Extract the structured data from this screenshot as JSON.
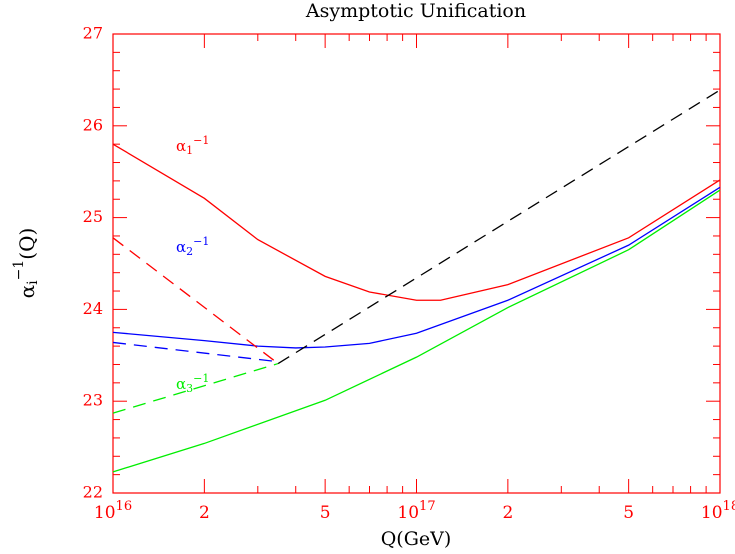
{
  "chart_data": {
    "type": "line",
    "title": "Asymptotic Unification",
    "xlabel": "Q(GeV)",
    "ylabel": {
      "base": "α",
      "sub": "i",
      "sup": "−1",
      "rest": "(Q)"
    },
    "xscale": "log",
    "xlim": [
      1e+16,
      1e+18
    ],
    "ylim": [
      22,
      27
    ],
    "xticks": [
      {
        "value": 1e+16,
        "label": "10",
        "sup": "16"
      },
      {
        "value": 2e+16,
        "label": "2"
      },
      {
        "value": 5e+16,
        "label": "5"
      },
      {
        "value": 1e+17,
        "label": "10",
        "sup": "17"
      },
      {
        "value": 2e+17,
        "label": "2"
      },
      {
        "value": 5e+17,
        "label": "5"
      },
      {
        "value": 1e+18,
        "label": "10",
        "sup": "18"
      }
    ],
    "xminorticks": [
      3e+16,
      4e+16,
      6e+16,
      7e+16,
      8e+16,
      9e+16,
      3e+17,
      4e+17,
      6e+17,
      7e+17,
      8e+17,
      9e+17
    ],
    "yticks": [
      22,
      23,
      24,
      25,
      26,
      27
    ],
    "yminorticks": [
      22.2,
      22.4,
      22.6,
      22.8,
      23.2,
      23.4,
      23.6,
      23.8,
      24.2,
      24.4,
      24.6,
      24.8,
      25.2,
      25.4,
      25.6,
      25.8,
      26.2,
      26.4,
      26.6,
      26.8
    ],
    "axis_color": "#ff0000",
    "series": [
      {
        "color": "#ff0000",
        "dash": false,
        "x": [
          1e+16,
          2e+16,
          3e+16,
          5e+16,
          7e+16,
          1e+17,
          1.2e+17,
          2e+17,
          5e+17,
          1e+18
        ],
        "values": [
          25.8,
          25.21,
          24.76,
          24.36,
          24.19,
          24.1,
          24.1,
          24.27,
          24.78,
          25.41
        ]
      },
      {
        "color": "#0000ff",
        "dash": false,
        "x": [
          1e+16,
          2e+16,
          3e+16,
          4e+16,
          5e+16,
          7e+16,
          1e+17,
          2e+17,
          5e+17,
          1e+18
        ],
        "values": [
          23.75,
          23.66,
          23.6,
          23.58,
          23.59,
          23.63,
          23.74,
          24.1,
          24.7,
          25.33
        ]
      },
      {
        "color": "#00ee00",
        "dash": false,
        "x": [
          1e+16,
          2e+16,
          5e+16,
          1e+17,
          2e+17,
          5e+17,
          1e+18
        ],
        "values": [
          22.23,
          22.54,
          23.01,
          23.48,
          24.02,
          24.65,
          25.3
        ]
      },
      {
        "color": "#ff0000",
        "dash": true,
        "x": [
          1e+16,
          3.5e+16
        ],
        "values": [
          24.78,
          23.41
        ]
      },
      {
        "color": "#0000ff",
        "dash": true,
        "x": [
          1e+16,
          3.5e+16
        ],
        "values": [
          23.64,
          23.43
        ]
      },
      {
        "color": "#00ee00",
        "dash": true,
        "x": [
          1e+16,
          3.5e+16
        ],
        "values": [
          22.87,
          23.41
        ]
      },
      {
        "color": "#000000",
        "dash": true,
        "x": [
          3.5e+16,
          1e+18
        ],
        "values": [
          23.41,
          26.39
        ]
      }
    ],
    "annotations": [
      {
        "base": "α",
        "sub": "1",
        "sup": "−1",
        "color": "#ff0000"
      },
      {
        "base": "α",
        "sub": "2",
        "sup": "−1",
        "color": "#0000ff"
      },
      {
        "base": "α",
        "sub": "3",
        "sup": "−1",
        "color": "#00ee00"
      }
    ]
  }
}
